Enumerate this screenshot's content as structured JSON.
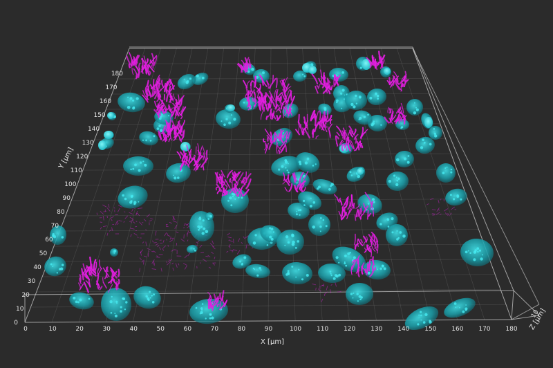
{
  "colors": {
    "background": "#2b2b2b",
    "nuclei": "#1fb8c4",
    "nuclei_highlight": "#45e8ee",
    "mitochondria": "#e21ee0",
    "grid": "#8a8a8a",
    "box_edge": "#c8c8c8",
    "text": "#e6e6e6"
  },
  "axes": {
    "x": {
      "label": "X [µm]",
      "ticks": [
        "0",
        "10",
        "20",
        "30",
        "40",
        "50",
        "60",
        "70",
        "80",
        "90",
        "100",
        "110",
        "120",
        "130",
        "140",
        "150",
        "160",
        "170",
        "180"
      ]
    },
    "y": {
      "label": "Y [µm]",
      "ticks": [
        "0",
        "10",
        "20",
        "30",
        "40",
        "50",
        "60",
        "70",
        "80",
        "90",
        "100",
        "110",
        "120",
        "130",
        "140",
        "150",
        "160",
        "170",
        "180"
      ]
    },
    "z": {
      "label": "Z [µm]",
      "ticks": [
        "10"
      ]
    }
  }
}
